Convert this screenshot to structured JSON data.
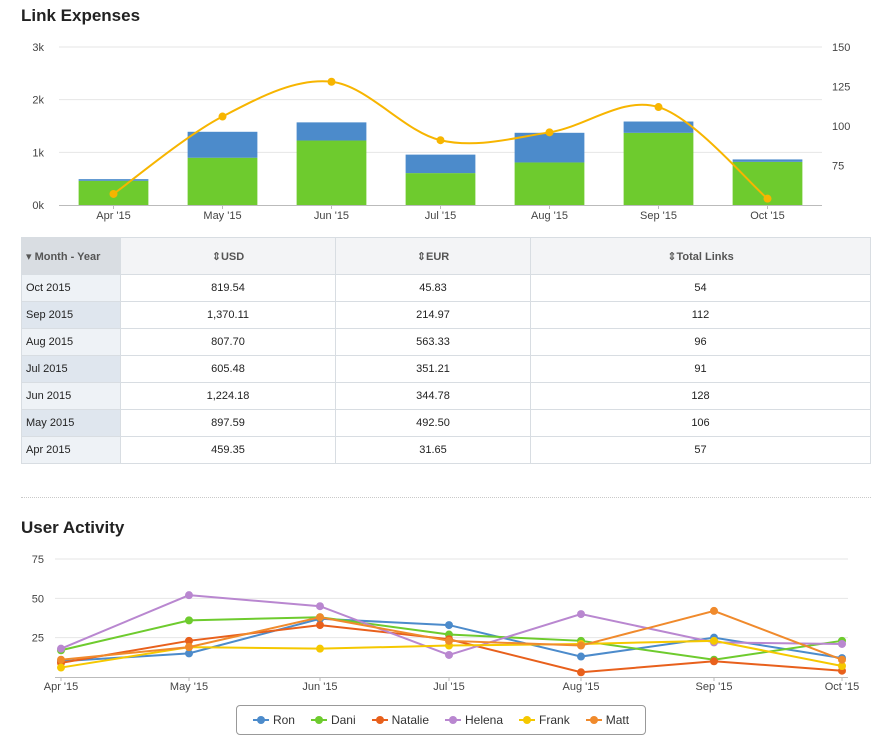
{
  "expenses": {
    "title": "Link Expenses"
  },
  "table": {
    "headers": [
      "Month - Year",
      "USD",
      "EUR",
      "Total Links"
    ],
    "rows": [
      [
        "Oct 2015",
        "819.54",
        "45.83",
        "54"
      ],
      [
        "Sep 2015",
        "1,370.11",
        "214.97",
        "112"
      ],
      [
        "Aug 2015",
        "807.70",
        "563.33",
        "96"
      ],
      [
        "Jul 2015",
        "605.48",
        "351.21",
        "91"
      ],
      [
        "Jun 2015",
        "1,224.18",
        "344.78",
        "128"
      ],
      [
        "May 2015",
        "897.59",
        "492.50",
        "106"
      ],
      [
        "Apr 2015",
        "459.35",
        "31.65",
        "57"
      ]
    ]
  },
  "activity": {
    "title": "User Activity"
  },
  "chart_data": [
    {
      "type": "bar",
      "stacked": true,
      "categories": [
        "Apr '15",
        "May '15",
        "Jun '15",
        "Jul '15",
        "Aug '15",
        "Sep '15",
        "Oct '15"
      ],
      "series": [
        {
          "values": [
            459.35,
            897.59,
            1224.18,
            605.48,
            807.7,
            1370.11,
            819.54
          ],
          "color": "#6ECB2E"
        },
        {
          "values": [
            31.65,
            492.5,
            344.78,
            351.21,
            563.33,
            214.97,
            45.83
          ],
          "color": "#4C8BCB"
        }
      ],
      "line": {
        "values": [
          57,
          106,
          128,
          91,
          96,
          112,
          54
        ],
        "color": "#F7B500",
        "axis": "right",
        "smooth": true
      },
      "ylim": [
        0,
        3000
      ],
      "yticks": [
        "0k",
        "1k",
        "2k",
        "3k"
      ],
      "y2lim": [
        50,
        150
      ],
      "y2ticks": [
        "75",
        "100",
        "125",
        "150"
      ],
      "grid": true
    },
    {
      "type": "line",
      "categories": [
        "Apr '15",
        "May '15",
        "Jun '15",
        "Jul '15",
        "Aug '15",
        "Sep '15",
        "Oct '15"
      ],
      "series": [
        {
          "name": "Ron",
          "values": [
            10,
            15,
            37,
            33,
            13,
            25,
            12
          ],
          "color": "#4C8BCB"
        },
        {
          "name": "Dani",
          "values": [
            17,
            36,
            38,
            27,
            23,
            11,
            23
          ],
          "color": "#6ECB2E"
        },
        {
          "name": "Natalie",
          "values": [
            9,
            23,
            33,
            24,
            3,
            10,
            4
          ],
          "color": "#E8601C"
        },
        {
          "name": "Helena",
          "values": [
            18,
            52,
            45,
            14,
            40,
            22,
            21
          ],
          "color": "#B987D0"
        },
        {
          "name": "Frank",
          "values": [
            6,
            19,
            18,
            20,
            21,
            23,
            7
          ],
          "color": "#F5C800"
        },
        {
          "name": "Matt",
          "values": [
            11,
            19,
            38,
            23,
            20,
            42,
            11
          ],
          "color": "#F08A2C"
        }
      ],
      "ylim": [
        0,
        75
      ],
      "yticks": [
        "25",
        "50",
        "75"
      ],
      "legend": "bottom-center",
      "grid": true
    }
  ]
}
